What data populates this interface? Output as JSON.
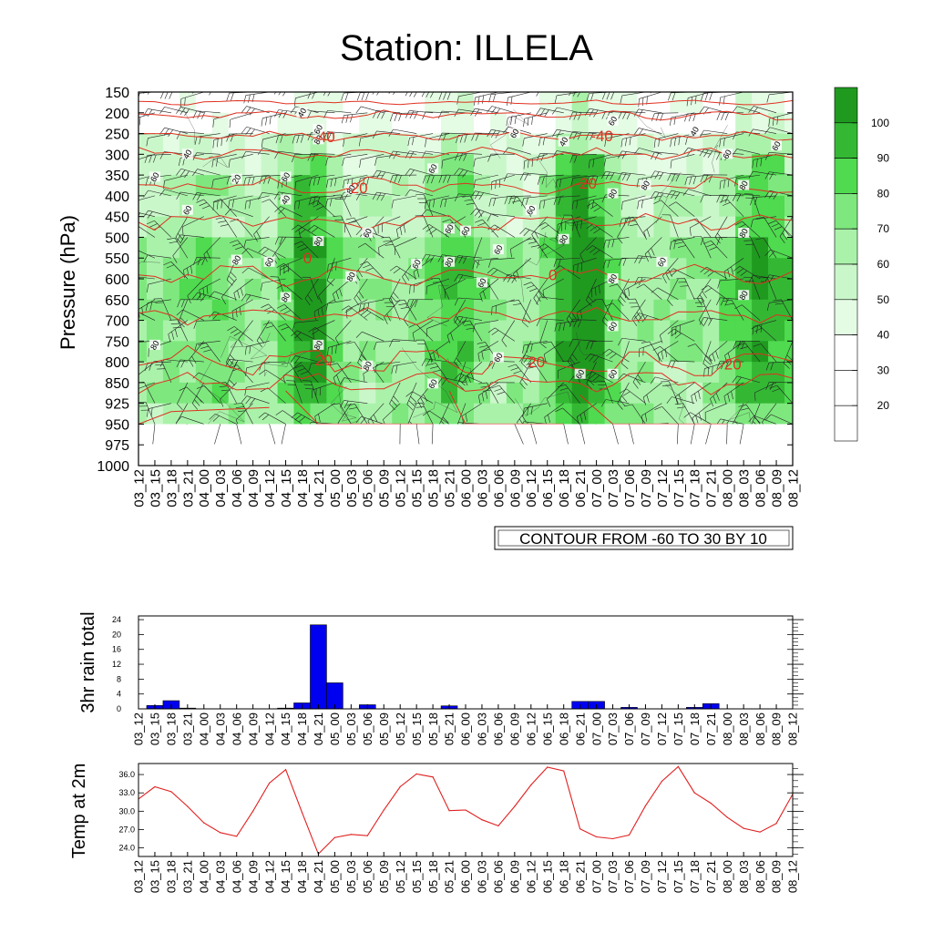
{
  "title": "Station: ILLELA",
  "time_labels": [
    "03_12",
    "03_15",
    "03_18",
    "03_21",
    "04_00",
    "04_03",
    "04_06",
    "04_09",
    "04_12",
    "04_15",
    "04_18",
    "04_21",
    "05_00",
    "05_03",
    "05_06",
    "05_09",
    "05_12",
    "05_15",
    "05_18",
    "05_21",
    "06_00",
    "06_03",
    "06_06",
    "06_09",
    "06_12",
    "06_15",
    "06_18",
    "06_21",
    "07_00",
    "07_03",
    "07_06",
    "07_09",
    "07_12",
    "07_15",
    "07_18",
    "07_21",
    "08_00",
    "08_03",
    "08_06",
    "08_09",
    "08_12"
  ],
  "chart_data": [
    {
      "type": "heatmap",
      "name": "humidity-temperature-cross-section",
      "ylabel": "Pressure (hPa)",
      "y_tick_labels": [
        "150",
        "200",
        "250",
        "300",
        "350",
        "400",
        "450",
        "500",
        "550",
        "600",
        "650",
        "700",
        "750",
        "800",
        "850",
        "925",
        "950",
        "975",
        "1000"
      ],
      "ylim": [
        1000,
        150
      ],
      "colorbar_levels": [
        "100",
        "90",
        "80",
        "70",
        "60",
        "50",
        "40",
        "30",
        "20"
      ],
      "colorbar_colors": [
        "#1f9a1f",
        "#34b834",
        "#4fda4f",
        "#7ee87e",
        "#aaf2aa",
        "#caf7ca",
        "#e4fbe4",
        "#ffffff",
        "#ffffff",
        "#ffffff"
      ],
      "humidity_contour_labels": [
        {
          "text": "40",
          "time": "04_18",
          "p": 200
        },
        {
          "text": "60",
          "time": "04_21",
          "p": 240
        },
        {
          "text": "80",
          "time": "04_21",
          "p": 265
        },
        {
          "text": "40",
          "time": "03_21",
          "p": 300
        },
        {
          "text": "60",
          "time": "03_15",
          "p": 355
        },
        {
          "text": "20",
          "time": "04_06",
          "p": 360
        },
        {
          "text": "60",
          "time": "04_15",
          "p": 355
        },
        {
          "text": "40",
          "time": "04_15",
          "p": 410
        },
        {
          "text": "60",
          "time": "03_21",
          "p": 435
        },
        {
          "text": "80",
          "time": "04_06",
          "p": 555
        },
        {
          "text": "60",
          "time": "04_12",
          "p": 560
        },
        {
          "text": "80",
          "time": "04_21",
          "p": 510
        },
        {
          "text": "80",
          "time": "05_03",
          "p": 595
        },
        {
          "text": "80",
          "time": "05_03",
          "p": 385
        },
        {
          "text": "60",
          "time": "05_06",
          "p": 490
        },
        {
          "text": "80",
          "time": "04_15",
          "p": 645
        },
        {
          "text": "80",
          "time": "04_21",
          "p": 760
        },
        {
          "text": "80",
          "time": "03_15",
          "p": 760
        },
        {
          "text": "80",
          "time": "05_06",
          "p": 810
        },
        {
          "text": "60",
          "time": "05_15",
          "p": 565
        },
        {
          "text": "60",
          "time": "05_18",
          "p": 335
        },
        {
          "text": "60",
          "time": "05_21",
          "p": 480
        },
        {
          "text": "80",
          "time": "05_21",
          "p": 560
        },
        {
          "text": "60",
          "time": "06_00",
          "p": 485
        },
        {
          "text": "60",
          "time": "05_18",
          "p": 855
        },
        {
          "text": "60",
          "time": "06_09",
          "p": 250
        },
        {
          "text": "60",
          "time": "06_06",
          "p": 530
        },
        {
          "text": "60",
          "time": "06_03",
          "p": 610
        },
        {
          "text": "60",
          "time": "06_06",
          "p": 790
        },
        {
          "text": "60",
          "time": "06_12",
          "p": 435
        },
        {
          "text": "40",
          "time": "06_18",
          "p": 270
        },
        {
          "text": "80",
          "time": "06_18",
          "p": 505
        },
        {
          "text": "60",
          "time": "07_03",
          "p": 220
        },
        {
          "text": "80",
          "time": "07_03",
          "p": 395
        },
        {
          "text": "80",
          "time": "07_03",
          "p": 600
        },
        {
          "text": "60",
          "time": "07_03",
          "p": 715
        },
        {
          "text": "60",
          "time": "07_03",
          "p": 830
        },
        {
          "text": "60",
          "time": "06_21",
          "p": 830
        },
        {
          "text": "80",
          "time": "07_09",
          "p": 375
        },
        {
          "text": "60",
          "time": "07_12",
          "p": 560
        },
        {
          "text": "40",
          "time": "07_18",
          "p": 245
        },
        {
          "text": "60",
          "time": "08_00",
          "p": 300
        },
        {
          "text": "60",
          "time": "08_09",
          "p": 280
        },
        {
          "text": "80",
          "time": "08_03",
          "p": 375
        },
        {
          "text": "80",
          "time": "08_03",
          "p": 490
        },
        {
          "text": "80",
          "time": "08_03",
          "p": 640
        }
      ],
      "temperature_contour_labels": [
        {
          "text": "-40",
          "time": "04_21",
          "p": 258
        },
        {
          "text": "-40",
          "time": "07_00",
          "p": 255
        },
        {
          "text": "-20",
          "time": "05_03",
          "p": 380
        },
        {
          "text": "-20",
          "time": "06_21",
          "p": 370
        },
        {
          "text": "0",
          "time": "04_18",
          "p": 550
        },
        {
          "text": "0",
          "time": "06_15",
          "p": 590
        },
        {
          "text": "20",
          "time": "04_21",
          "p": 795
        },
        {
          "text": "20",
          "time": "06_12",
          "p": 800
        },
        {
          "text": "20",
          "time": "08_00",
          "p": 805
        }
      ],
      "annotation": "CONTOUR FROM -60 TO 30 BY 10"
    },
    {
      "type": "bar",
      "name": "3hr-rain-total",
      "ylabel": "3hr rain total",
      "y_tick_labels": [
        "0",
        "4",
        "8",
        "12",
        "16",
        "20",
        "24"
      ],
      "ylim": [
        0,
        25
      ],
      "values": [
        0,
        0.9,
        2.2,
        0.2,
        0,
        0,
        0,
        0,
        0,
        0.2,
        1.6,
        22.6,
        7.0,
        0,
        1.1,
        0,
        0,
        0,
        0,
        0.8,
        0,
        0,
        0,
        0,
        0,
        0,
        0,
        2.0,
        2.0,
        0,
        0.4,
        0,
        0,
        0,
        0.4,
        1.4,
        0,
        0,
        0,
        0,
        0
      ]
    },
    {
      "type": "line",
      "name": "temp-at-2m",
      "ylabel": "Temp at 2m",
      "y_tick_labels": [
        "24.0",
        "27.0",
        "30.0",
        "33.0",
        "36.0"
      ],
      "ylim": [
        22.6,
        37.8
      ],
      "values": [
        32.0,
        34.0,
        33.2,
        30.8,
        28.1,
        26.5,
        25.9,
        30.0,
        34.6,
        36.8,
        29.8,
        23.0,
        25.7,
        26.2,
        26.0,
        30.2,
        34.0,
        36.1,
        35.6,
        30.1,
        30.2,
        28.6,
        27.6,
        30.8,
        34.3,
        37.2,
        36.6,
        27.1,
        25.8,
        25.5,
        26.1,
        30.9,
        34.9,
        37.3,
        33.0,
        31.3,
        29.0,
        27.2,
        26.6,
        28.0,
        32.8
      ]
    }
  ]
}
